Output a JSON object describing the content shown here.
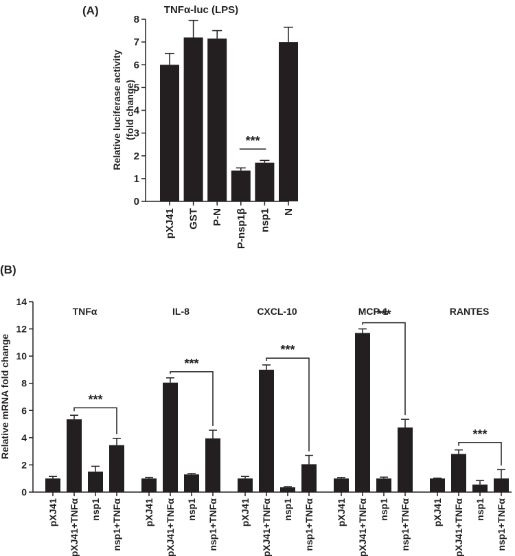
{
  "colors": {
    "bar": "#231f20",
    "axis": "#231f20",
    "background": "#ffffff"
  },
  "chart_data": [
    {
      "panel_label": "(A)",
      "type": "bar",
      "title": "TNFα-luc (LPS)",
      "ylabel": "Relative luciferase activity\n(fold change)",
      "xlabel": "",
      "ylim": [
        0,
        8
      ],
      "yticks": [
        "0",
        "1",
        "2",
        "3",
        "4",
        "5",
        "6",
        "7",
        "8"
      ],
      "categories": [
        "pXJ41",
        "GST",
        "P-N",
        "P-nsp1β",
        "nsp1",
        "N"
      ],
      "values": [
        6.0,
        7.2,
        7.15,
        1.35,
        1.7,
        7.0
      ],
      "errors": [
        0.5,
        0.75,
        0.35,
        0.12,
        0.1,
        0.65
      ],
      "annotations": [
        {
          "text": "***",
          "from": 3,
          "to": 4,
          "y": 2.3,
          "style": "line"
        }
      ]
    },
    {
      "panel_label": "(B)",
      "type": "bar",
      "ylabel": "Relative mRNA fold change",
      "xlabel": "",
      "ylim": [
        0,
        14
      ],
      "yticks": [
        "0",
        "2",
        "4",
        "6",
        "8",
        "10",
        "12",
        "14"
      ],
      "categories": [
        "pXJ41",
        "pXJ41+TNFα",
        "nsp1",
        "nsp1+TNFα"
      ],
      "groups": [
        {
          "name": "TNFα",
          "values": [
            1.0,
            5.35,
            1.5,
            3.45
          ],
          "errors": [
            0.15,
            0.3,
            0.4,
            0.5
          ]
        },
        {
          "name": "IL-8",
          "values": [
            1.0,
            8.05,
            1.3,
            3.95
          ],
          "errors": [
            0.08,
            0.35,
            0.07,
            0.6
          ]
        },
        {
          "name": "CXCL-10",
          "values": [
            1.0,
            9.0,
            0.35,
            2.05
          ],
          "errors": [
            0.15,
            0.35,
            0.05,
            0.65
          ]
        },
        {
          "name": "MCP-1",
          "values": [
            1.0,
            11.7,
            1.0,
            4.75
          ],
          "errors": [
            0.07,
            0.3,
            0.1,
            0.6
          ]
        },
        {
          "name": "RANTES",
          "values": [
            1.0,
            2.8,
            0.55,
            1.0
          ],
          "errors": [
            0.03,
            0.3,
            0.3,
            0.65
          ]
        }
      ],
      "annotations": [
        {
          "text": "***",
          "group": 0,
          "from": 1,
          "to": 3,
          "y": 6.2,
          "style": "bracket"
        },
        {
          "text": "***",
          "group": 1,
          "from": 1,
          "to": 3,
          "y": 8.85,
          "style": "bracket"
        },
        {
          "text": "***",
          "group": 2,
          "from": 1,
          "to": 3,
          "y": 9.85,
          "style": "bracket"
        },
        {
          "text": "***",
          "group": 3,
          "from": 1,
          "to": 3,
          "y": 12.45,
          "style": "bracket"
        },
        {
          "text": "***",
          "group": 4,
          "from": 1,
          "to": 3,
          "y": 3.65,
          "style": "bracket"
        }
      ]
    }
  ]
}
